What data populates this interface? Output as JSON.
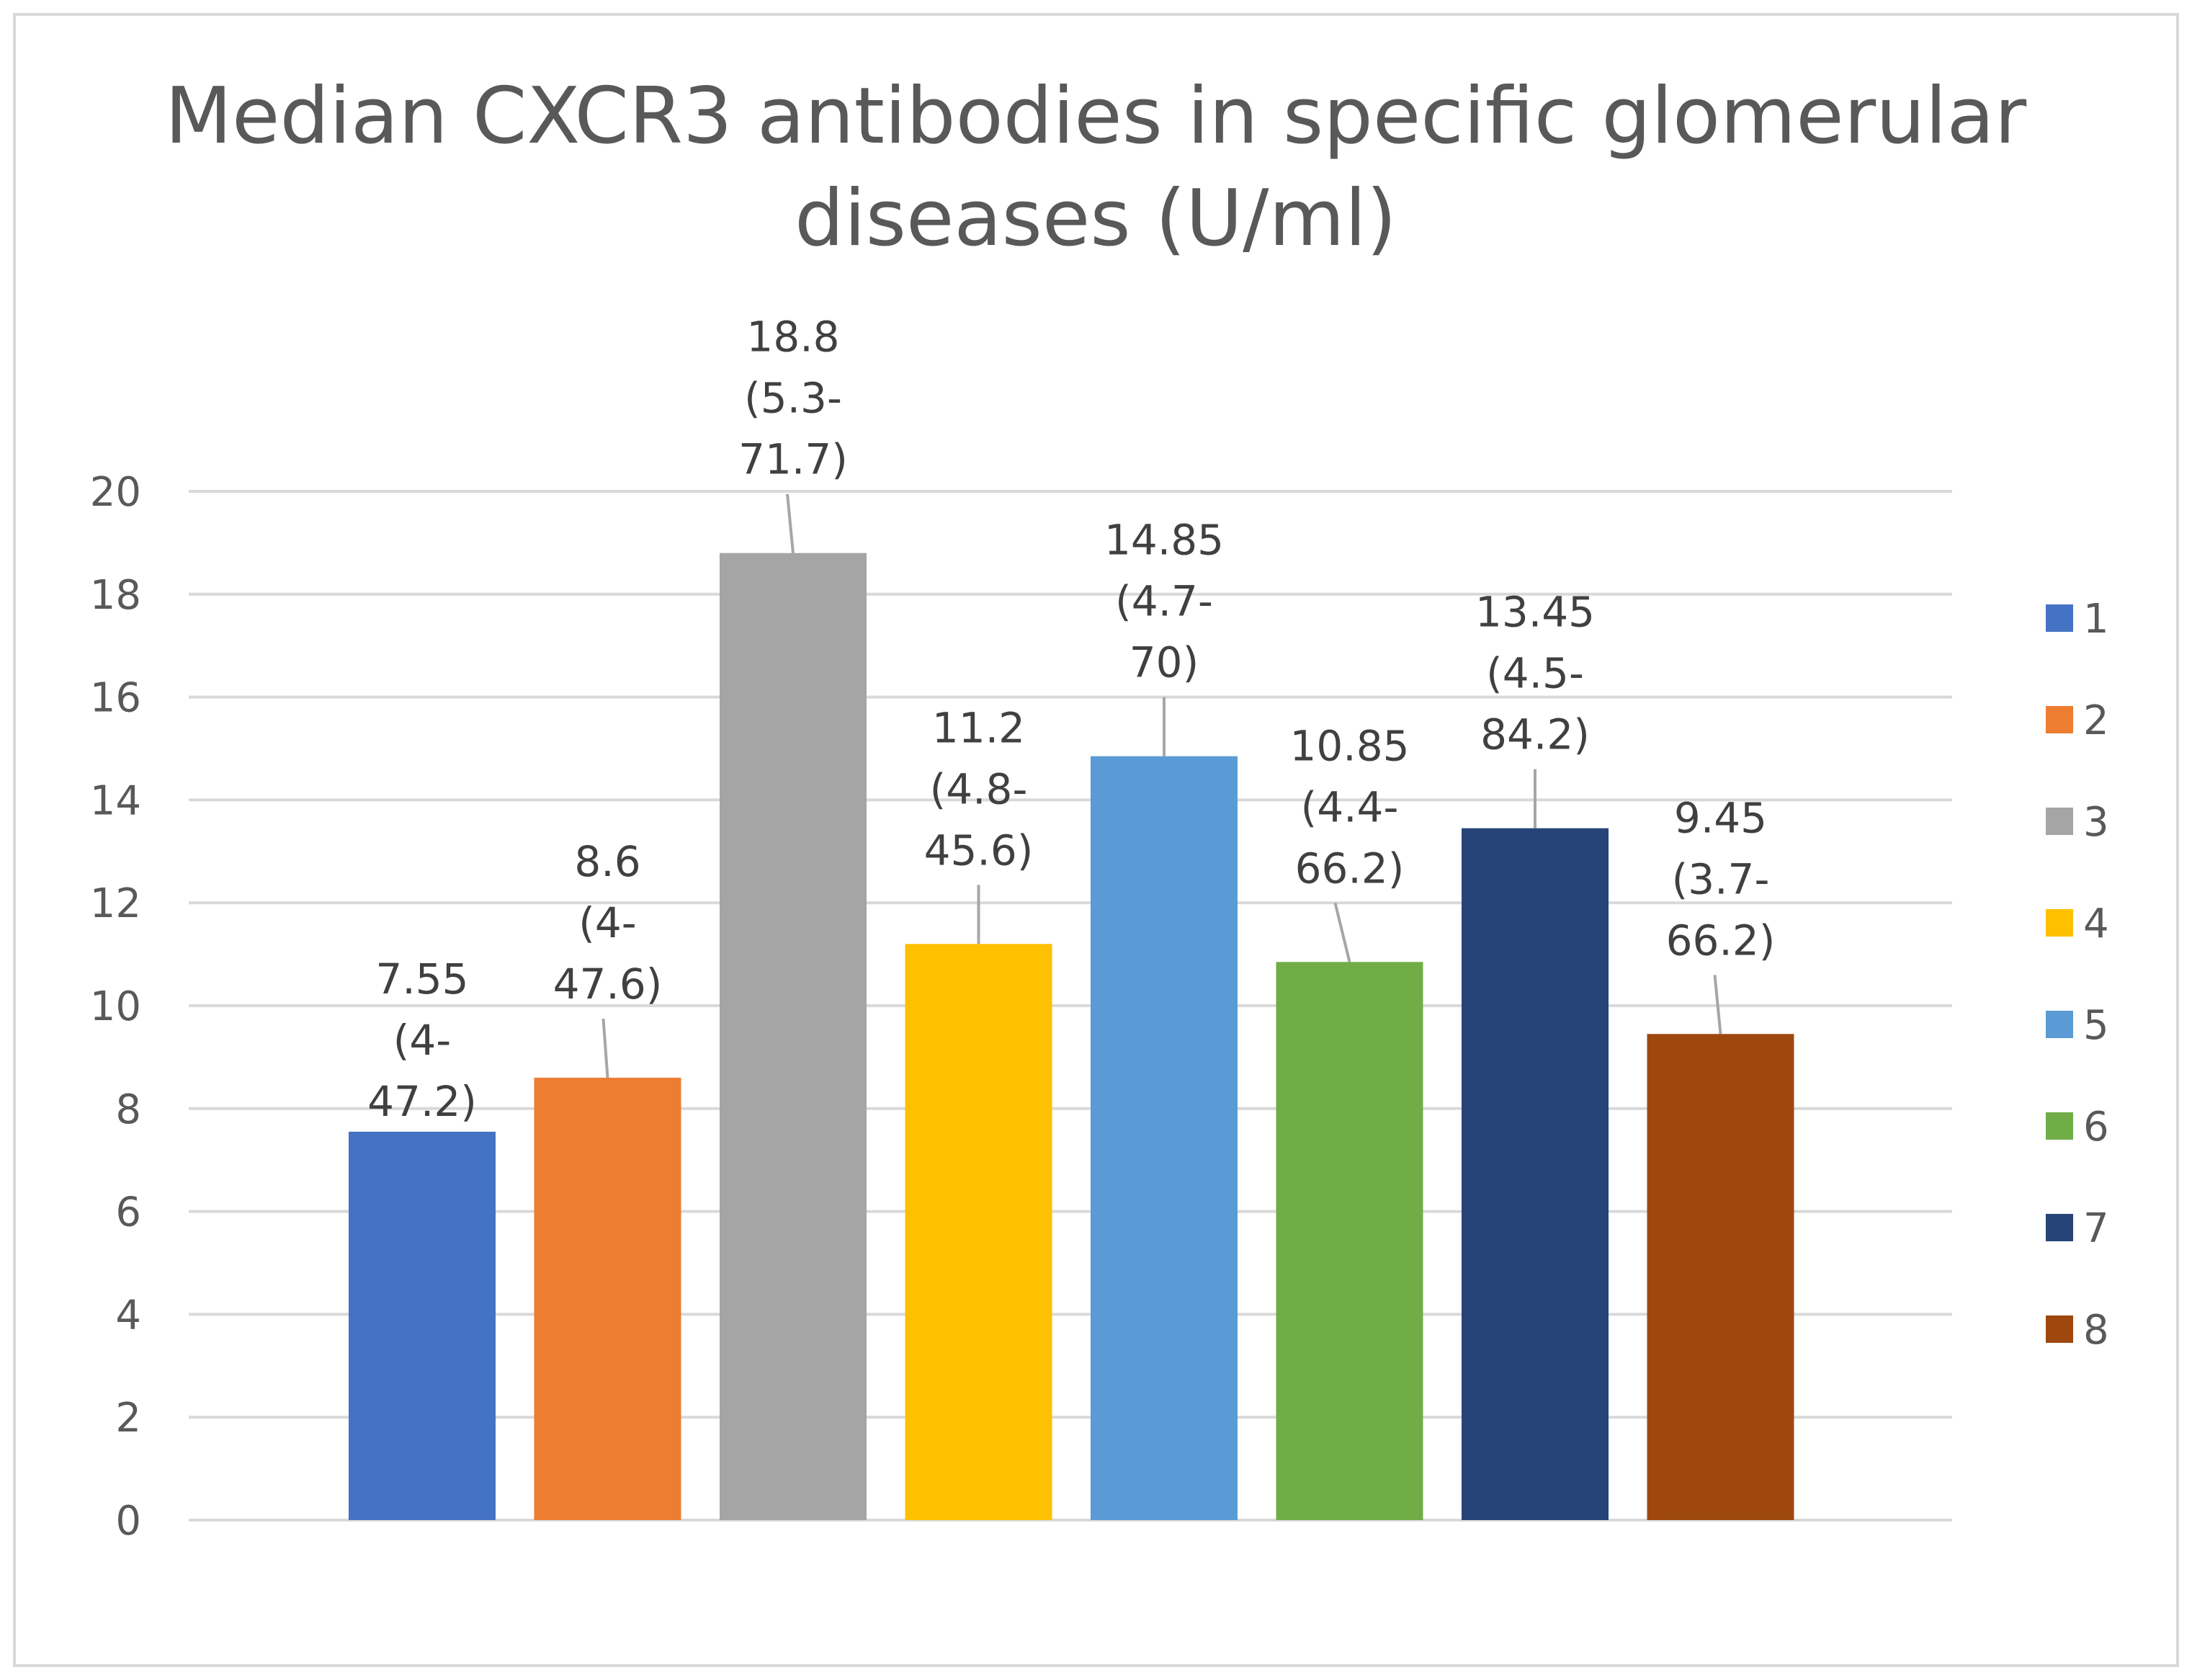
{
  "chart_data": {
    "type": "bar",
    "title": "Median CXCR3 antibodies in specific glomerular diseases (U/ml)",
    "title_lines": [
      "Median CXCR3 antibodies in specific glomerular",
      "diseases (U/ml)"
    ],
    "xlabel": "",
    "ylabel": "",
    "ylim": [
      0,
      20
    ],
    "ytick_step": 2,
    "grid": true,
    "legend_position": "right",
    "categories": [
      "1",
      "2",
      "3",
      "4",
      "5",
      "6",
      "7",
      "8"
    ],
    "values": [
      7.55,
      8.6,
      18.8,
      11.2,
      14.85,
      10.85,
      13.45,
      9.45
    ],
    "data_labels": [
      [
        "7.55",
        "(4-",
        "47.2)"
      ],
      [
        "8.6",
        "(4-",
        "47.6)"
      ],
      [
        "18.8",
        "(5.3-",
        "71.7)"
      ],
      [
        "11.2",
        "(4.8-",
        "45.6)"
      ],
      [
        "14.85",
        "(4.7-",
        "70)"
      ],
      [
        "10.85",
        "(4.4-",
        "66.2)"
      ],
      [
        "13.45",
        "(4.5-",
        "84.2)"
      ],
      [
        "9.45",
        "(3.7-",
        "66.2)"
      ]
    ],
    "colors": [
      "#4472c4",
      "#ed7d31",
      "#a5a5a5",
      "#ffc000",
      "#5b9bd5",
      "#70ad47",
      "#264478",
      "#9e480e"
    ],
    "gridline_color": "#d9d9d9",
    "leader_line_color": "#a6a6a6"
  }
}
